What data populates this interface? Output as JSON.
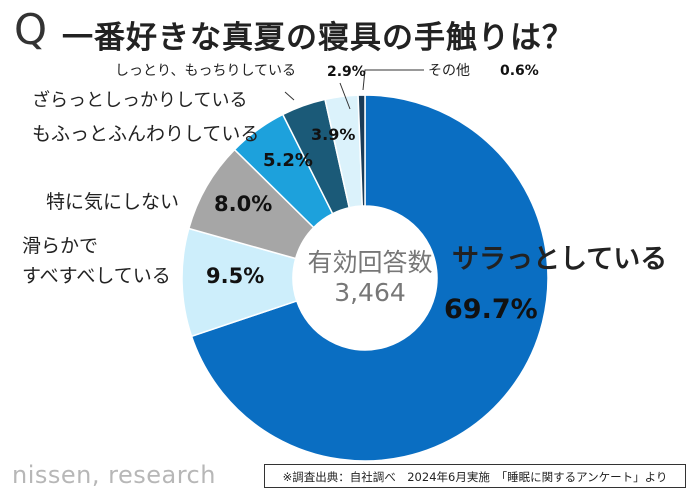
{
  "header": {
    "q_mark": "Q",
    "title": "一番好きな真夏の寝具の手触りは？"
  },
  "chart_data": {
    "type": "pie",
    "categories": [
      "サラっとしている",
      "滑らかで すべすべしている",
      "特に気にしない",
      "もふっとふんわりしている",
      "ざらっとしっかりしている",
      "しっとり、もっちりしている",
      "その他"
    ],
    "values": [
      69.7,
      9.5,
      8.0,
      5.2,
      3.9,
      2.9,
      0.6
    ],
    "value_labels": [
      "69.7%",
      "9.5%",
      "8.0%",
      "5.2%",
      "3.9%",
      "2.9%",
      "0.6%"
    ],
    "colors": [
      "#0a6ec2",
      "#cdeefb",
      "#a6a6a6",
      "#1da1dc",
      "#1b5a78",
      "#dbf2fb",
      "#1a3b57"
    ],
    "center_title": "有効回答数",
    "center_value": "3,464",
    "hole": "donut"
  },
  "footer": {
    "brand": "nissen, research",
    "source": "※調査出典：自社調べ　2024年6月実施　「睡眠に関するアンケート」より"
  }
}
